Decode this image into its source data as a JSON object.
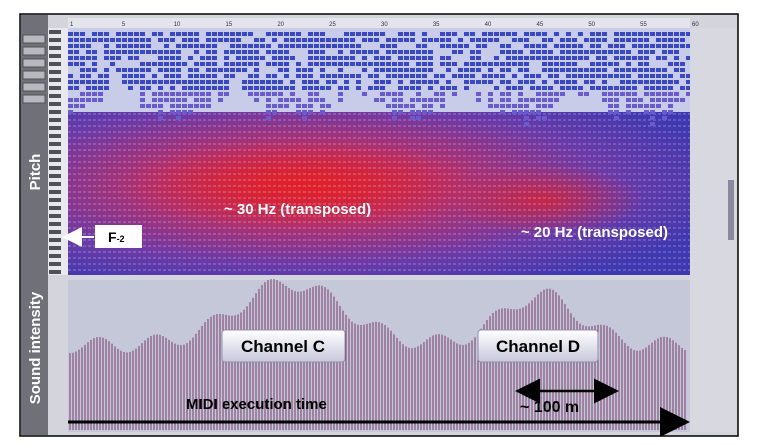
{
  "labels": {
    "pitch": "Pitch",
    "intensity": "Sound intensity"
  },
  "ruler": [
    "1",
    "5",
    "10",
    "15",
    "20",
    "25",
    "30",
    "35",
    "40",
    "45",
    "50",
    "55",
    "60"
  ],
  "annotations": {
    "hz30": "~ 30 Hz (transposed)",
    "hz20": "~ 20 Hz (transposed)",
    "note": {
      "base": "F",
      "sub": "-2"
    },
    "channel_c": "Channel C",
    "channel_d": "Channel D",
    "time": "MIDI execution time",
    "distance": "~ 100 m"
  }
}
